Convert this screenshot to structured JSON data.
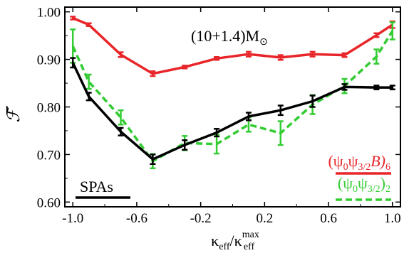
{
  "chart_data": {
    "type": "line",
    "title": "",
    "annotation": {
      "text": "(10+1.4)M",
      "symbol": "⊙"
    },
    "xlabel": {
      "base": "κ",
      "sub": "eff",
      "slash": "/",
      "base2": "κ",
      "sub2": "eff",
      "sup2": "max"
    },
    "ylabel": "ℱ̅",
    "xlim": [
      -1.05,
      1.05
    ],
    "ylim": [
      0.59,
      1.01
    ],
    "xticks": [
      -1.0,
      -0.6,
      -0.2,
      0.2,
      0.6,
      1.0
    ],
    "xtick_labels": [
      "-1.0",
      "-0.6",
      "-0.2",
      "0.2",
      "0.6",
      "1.0"
    ],
    "yticks": [
      0.6,
      0.7,
      0.8,
      0.9,
      1.0
    ],
    "ytick_labels": [
      "0.60",
      "0.70",
      "0.80",
      "0.90",
      "1.00"
    ],
    "legend_placement": "bottom-right (red, green); bottom-left (black)",
    "x": [
      -1.0,
      -0.9,
      -0.7,
      -0.5,
      -0.3,
      -0.1,
      0.1,
      0.3,
      0.5,
      0.7,
      0.9,
      1.0
    ],
    "series": [
      {
        "id": "red",
        "legend": {
          "base": "(ψ",
          "s1": "0",
          "mid": "ψ",
          "s2": "3/2",
          "tail": "B)",
          "s3": "6"
        },
        "color": "#e8262a",
        "dashed": false,
        "values": [
          0.987,
          0.973,
          0.91,
          0.87,
          0.884,
          0.902,
          0.911,
          0.904,
          0.911,
          0.909,
          0.951,
          0.973
        ],
        "errors": [
          0.003,
          0.003,
          0.005,
          0.005,
          0.003,
          0.003,
          0.005,
          0.005,
          0.005,
          0.004,
          0.004,
          0.007
        ]
      },
      {
        "id": "green",
        "legend": {
          "base": "(ψ",
          "s1": "0",
          "mid": "ψ",
          "s2": "3/2",
          "tail": ")",
          "s3": "2"
        },
        "color": "#33cc33",
        "dashed": true,
        "values": [
          0.928,
          0.853,
          0.778,
          0.686,
          0.724,
          0.722,
          0.763,
          0.745,
          0.805,
          0.844,
          0.906,
          0.96
        ],
        "errors": [
          0.035,
          0.015,
          0.015,
          0.015,
          0.015,
          0.02,
          0.015,
          0.025,
          0.02,
          0.015,
          0.015,
          0.018
        ]
      },
      {
        "id": "black",
        "legend": {
          "text": "SPAs"
        },
        "color": "#000000",
        "dashed": false,
        "values": [
          0.893,
          0.822,
          0.748,
          0.69,
          0.72,
          0.746,
          0.78,
          0.793,
          0.812,
          0.842,
          0.841,
          0.841
        ],
        "errors": [
          0.01,
          0.008,
          0.008,
          0.01,
          0.01,
          0.008,
          0.008,
          0.01,
          0.012,
          0.006,
          0.004,
          0.004
        ]
      }
    ]
  }
}
